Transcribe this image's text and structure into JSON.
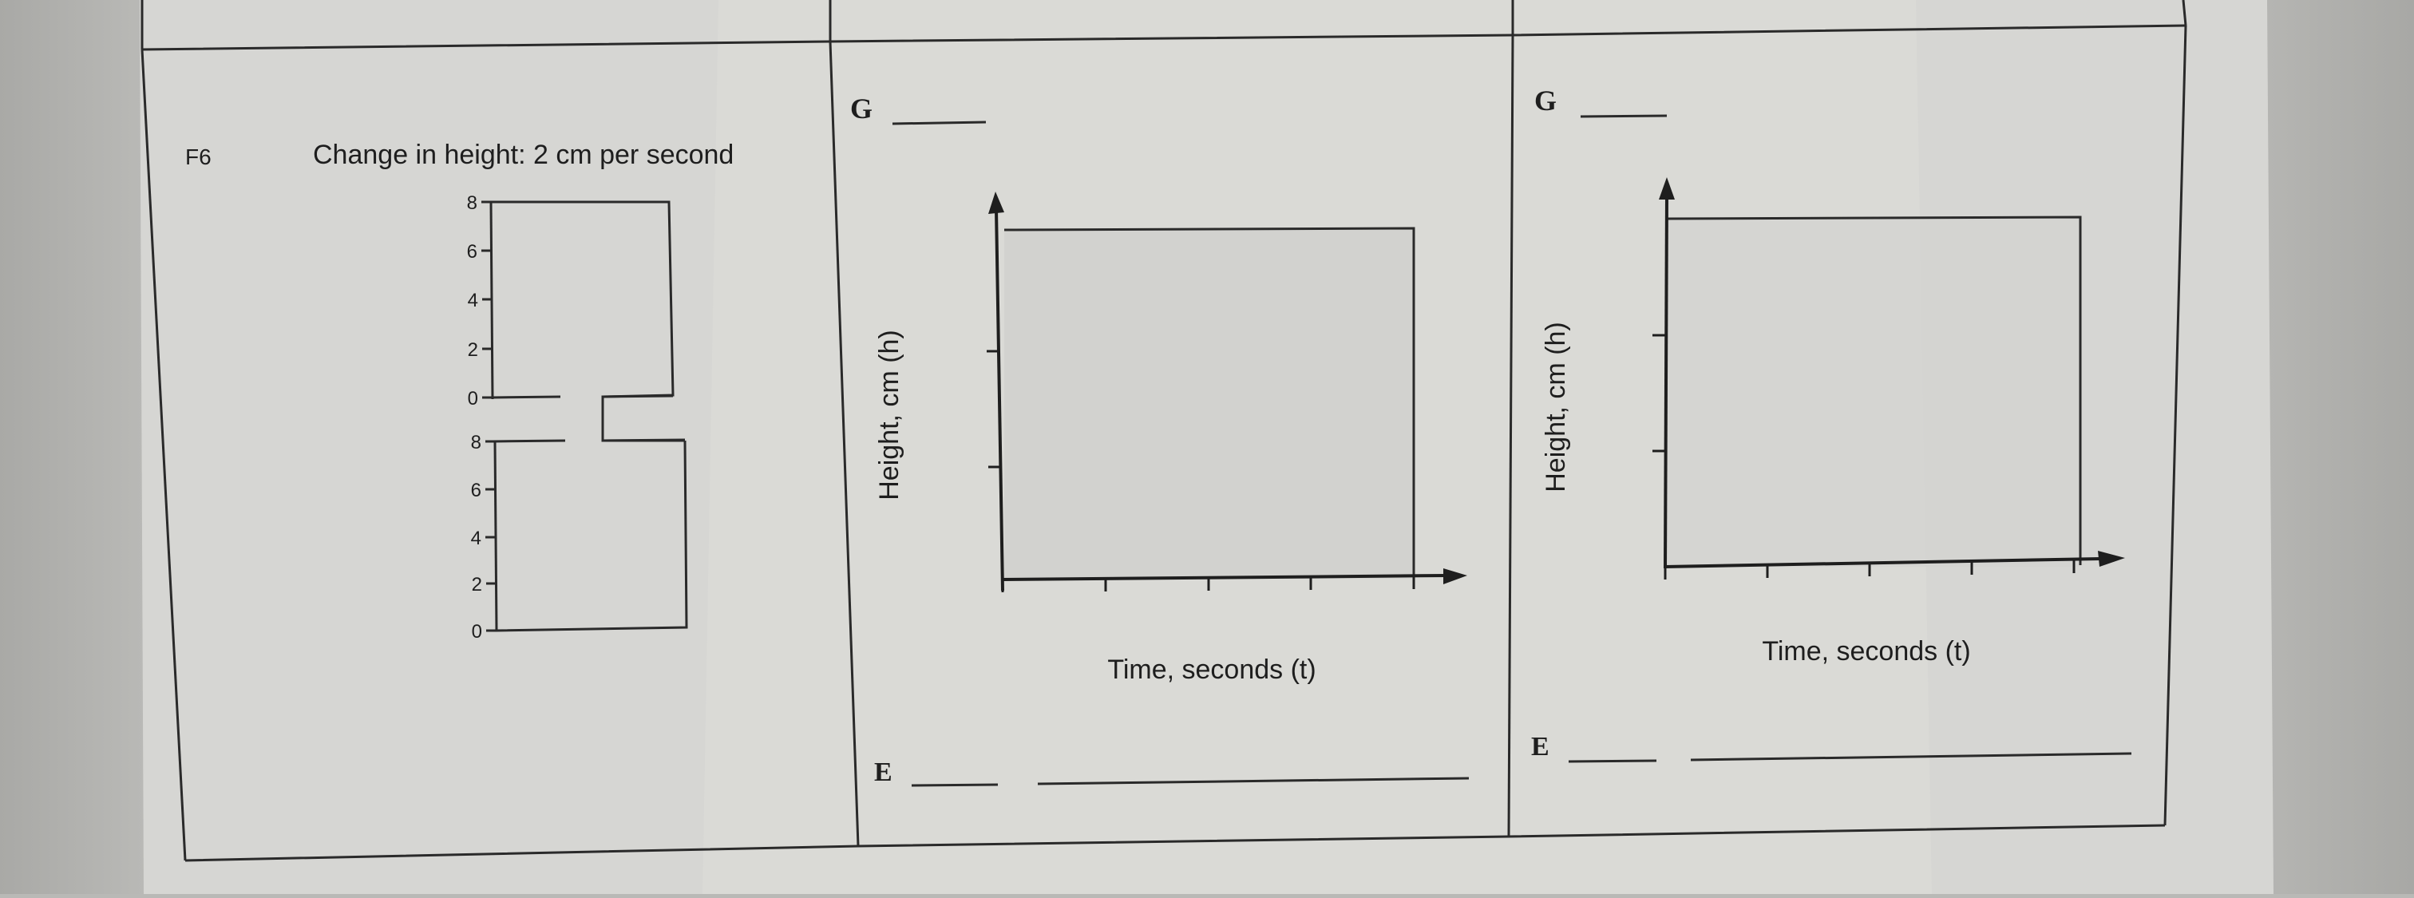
{
  "worksheet": {
    "problem": {
      "label": "F6",
      "description": "Change in height: 2 cm per second"
    },
    "container_scale": {
      "top_ticks": [
        "8",
        "6",
        "4",
        "2",
        "0"
      ],
      "bottom_ticks": [
        "8",
        "6",
        "4",
        "2",
        "0"
      ]
    },
    "graphs": [
      {
        "g_label": "G",
        "e_label": "E",
        "y_axis_label": "Height, cm (h)",
        "x_axis_label": "Time, seconds (t)"
      },
      {
        "g_label": "G",
        "e_label": "E",
        "y_axis_label": "Height, cm (h)",
        "x_axis_label": "Time, seconds (t)"
      }
    ]
  }
}
